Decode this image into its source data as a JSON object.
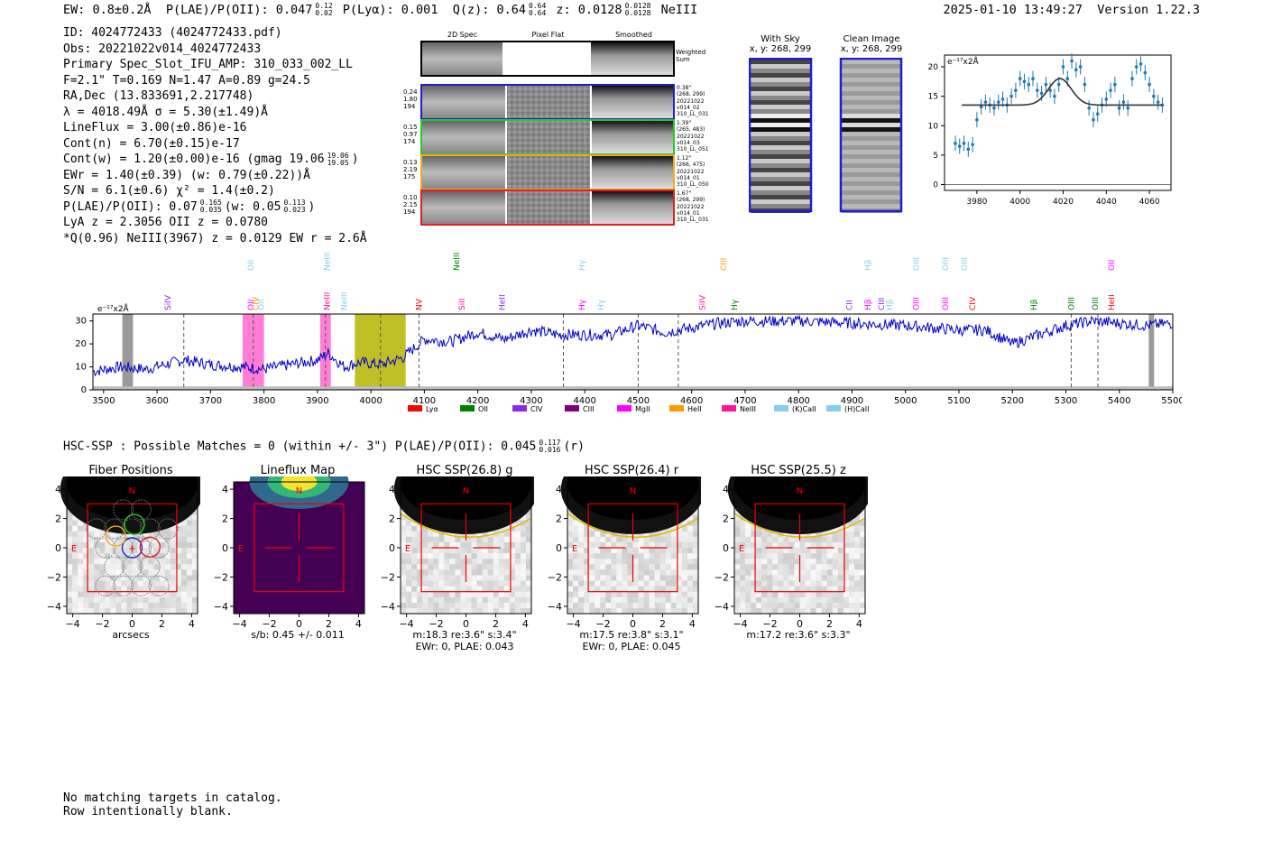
{
  "header": {
    "ew": "EW: 0.8±0.2Å",
    "plae_label": "P(LAE)/P(OII): 0.047",
    "plae_hi": "0.12",
    "plae_lo": "0.02",
    "plya": "P(Lyα): 0.001",
    "qz_label": "Q(z): 0.64",
    "qz_hi": "0.64",
    "qz_lo": "0.64",
    "z_label": "z: 0.0128",
    "z_hi": "0.0128",
    "z_lo": "0.0128",
    "line": "NeIII",
    "timestamp": "2025-01-10 13:49:27",
    "version": "Version 1.22.3"
  },
  "info": {
    "id": "ID: 4024772433 (4024772433.pdf)",
    "obs": "Obs: 20221022v014_4024772433",
    "primary": "Primary Spec_Slot_IFU_AMP: 310_033_002_LL",
    "fwhm": "F=2.1\"  T=0.169  N=1.47  A=0.89  g=24.5",
    "radec": "RA,Dec (13.833691,2.217748)",
    "lambda": "λ = 4018.49Å  σ = 5.30(±1.49)Å",
    "lineflux": "LineFlux = 3.00(±0.86)e-16",
    "contn": "Cont(n) = 6.70(±0.15)e-17",
    "contw": "Cont(w) = 1.20(±0.00)e-16 (gmag 19.06",
    "gmag_hi": "19.06",
    "gmag_lo": "19.05",
    "ewr": "EWr = 1.40(±0.39) (w: 0.79(±0.22))Å",
    "sn": "S/N = 6.1(±0.6)  χ² = 1.4(±0.2)",
    "plae": "P(LAE)/P(OII): 0.07",
    "plae_hi": "0.165",
    "plae_lo": "0.035",
    "plae_w": "(w: 0.05",
    "plae_w_hi": "0.113",
    "plae_w_lo": "0.023",
    "lya": "LyA z = 2.3056  OII z = 0.0780",
    "q": "*Q(0.96) NeIII(3967) z = 0.0129  EW r = 2.6Å"
  },
  "cutouts": {
    "col_titles": [
      "2D Spec",
      "Pixel Flat",
      "Smoothed"
    ],
    "weighted_label": "Weighted Sum",
    "rows": [
      {
        "left": [
          "0.24",
          "1.80",
          "194"
        ],
        "right": [
          "0.38\"",
          "(268, 299)",
          "20221022",
          "v014_02",
          "310_LL_031"
        ],
        "color": "#1f1fcf"
      },
      {
        "left": [
          "0.15",
          "0.97",
          "174"
        ],
        "right": [
          "1.39\"",
          "(265, 483)",
          "20221022",
          "v014_03",
          "310_LL_051"
        ],
        "color": "#22cc22"
      },
      {
        "left": [
          "0.13",
          "2.19",
          "175"
        ],
        "right": [
          "1.12\"",
          "(266, 475)",
          "20221022",
          "v014_01",
          "310_LL_050"
        ],
        "color": "#f5a623"
      },
      {
        "left": [
          "0.10",
          "2.15",
          "194"
        ],
        "right": [
          "1.67\"",
          "(268, 299)",
          "20221022",
          "v014_01",
          "310_LL_031"
        ],
        "color": "#e02020"
      }
    ],
    "with_sky_title": "With Sky",
    "with_sky_xy": "x, y: 268, 299",
    "clean_title": "Clean Image",
    "clean_xy": "x, y: 268, 299"
  },
  "zoom_plot": {
    "ylabel": "e⁻¹⁷x2Å",
    "xticks": [
      "3980",
      "4000",
      "4020",
      "4040",
      "4060"
    ],
    "yticks": [
      "0",
      "5",
      "10",
      "15",
      "20"
    ]
  },
  "chart_data": [
    {
      "type": "scatter",
      "title": "",
      "xlabel": "",
      "ylabel": "e-17 x2Å",
      "xlim": [
        3965,
        4070
      ],
      "ylim": [
        -1,
        22
      ],
      "x": [
        3970,
        3972,
        3974,
        3976,
        3978,
        3980,
        3982,
        3984,
        3986,
        3988,
        3990,
        3992,
        3994,
        3996,
        3998,
        4000,
        4002,
        4004,
        4006,
        4008,
        4010,
        4012,
        4014,
        4016,
        4018,
        4020,
        4022,
        4024,
        4026,
        4028,
        4030,
        4032,
        4034,
        4036,
        4038,
        4040,
        4042,
        4044,
        4046,
        4048,
        4050,
        4052,
        4054,
        4056,
        4058,
        4060,
        4062,
        4064,
        4066
      ],
      "values": [
        7,
        6.5,
        7,
        6,
        6.8,
        11,
        13.2,
        14,
        13.5,
        13,
        14,
        14.5,
        13.5,
        15,
        16,
        18,
        17.5,
        17,
        18,
        16,
        15.5,
        17,
        16,
        15,
        17,
        20,
        18,
        21,
        19.5,
        20,
        17,
        13,
        11,
        12,
        13.5,
        14.5,
        16,
        17,
        13,
        14,
        13,
        18,
        20,
        20.5,
        19,
        17,
        15,
        14,
        13.5
      ],
      "fit_model": "gaussian + continuum 13.5, peak ~18 at 4018.5"
    },
    {
      "type": "line",
      "title": "",
      "xlabel": "",
      "ylabel": "e-17 x2Å",
      "xlim": [
        3480,
        5500
      ],
      "ylim": [
        0,
        33
      ],
      "xticks": [
        "3500",
        "3600",
        "3700",
        "3800",
        "3900",
        "4000",
        "4100",
        "4200",
        "4300",
        "4400",
        "4500",
        "4600",
        "4700",
        "4800",
        "4900",
        "5000",
        "5100",
        "5200",
        "5300",
        "5400",
        "5500"
      ],
      "yticks": [
        "0",
        "10",
        "20",
        "30"
      ],
      "series": [
        {
          "name": "spectrum",
          "color": "#0000cc",
          "anchors_x": [
            3480,
            3530,
            3580,
            3650,
            3700,
            3760,
            3800,
            3850,
            3900,
            3920,
            3950,
            3980,
            4020,
            4060,
            4080,
            4100,
            4150,
            4200,
            4250,
            4300,
            4350,
            4400,
            4450,
            4500,
            4550,
            4600,
            4650,
            4700,
            4800,
            4900,
            5000,
            5050,
            5100,
            5150,
            5200,
            5250,
            5300,
            5350,
            5400,
            5450,
            5500
          ],
          "anchors_y": [
            8,
            10,
            9,
            13,
            11,
            10,
            9,
            11,
            13,
            16,
            10,
            12,
            11,
            14,
            18,
            22,
            21,
            25,
            22,
            26,
            24,
            24,
            24,
            28,
            25,
            27,
            29,
            30,
            30,
            29,
            28,
            27,
            26,
            26,
            20,
            24,
            28,
            30,
            29,
            28,
            29
          ]
        }
      ],
      "shaded_regions": [
        {
          "x0": 3760,
          "x1": 3800,
          "color": "#ff66cc"
        },
        {
          "x0": 3905,
          "x1": 3925,
          "color": "#ff66cc"
        },
        {
          "x0": 3970,
          "x1": 4065,
          "color": "#b5b500"
        },
        {
          "x0": 3535,
          "x1": 3555,
          "color": "#888888"
        },
        {
          "x0": 5455,
          "x1": 5465,
          "color": "#888888"
        }
      ],
      "legend": [
        "Lyα",
        "OII",
        "CIV",
        "CIII",
        "MgII",
        "HeII",
        "NeIII",
        "(K)CaII",
        "(H)CaII"
      ],
      "legend_colors": [
        "#ff0000",
        "#008000",
        "#8a2be2",
        "#800080",
        "#ff00ff",
        "#ff9900",
        "#ff1493",
        "#87ceeb",
        "#87ceeb"
      ],
      "lines_top": [
        {
          "label": "SiIV",
          "x": 3620,
          "color": "#8a2be2"
        },
        {
          "label": "OII",
          "x": 3775,
          "color": "#ff00ff"
        },
        {
          "label": "CIV",
          "x": 3785,
          "color": "#ff9900"
        },
        {
          "label": "OII",
          "x": 3795,
          "color": "#87ceeb"
        },
        {
          "label": "NeIII",
          "x": 3918,
          "color": "#ff1493"
        },
        {
          "label": "NeIII",
          "x": 3950,
          "color": "#87ceeb"
        },
        {
          "label": "NV",
          "x": 4090,
          "color": "#ff0000"
        },
        {
          "label": "SiII",
          "x": 4170,
          "color": "#ff1493"
        },
        {
          "label": "HeII",
          "x": 4245,
          "color": "#8a2be2"
        },
        {
          "label": "Hγ",
          "x": 4395,
          "color": "#ff00ff"
        },
        {
          "label": "Hγ",
          "x": 4430,
          "color": "#87ceeb"
        },
        {
          "label": "SiIV",
          "x": 4620,
          "color": "#ff1493"
        },
        {
          "label": "Hγ",
          "x": 4680,
          "color": "#008000"
        },
        {
          "label": "CII",
          "x": 4895,
          "color": "#8a2be2"
        },
        {
          "label": "Hβ",
          "x": 4930,
          "color": "#ff00ff"
        },
        {
          "label": "CIII",
          "x": 4955,
          "color": "#8a2be2"
        },
        {
          "label": "Hβ",
          "x": 4970,
          "color": "#87ceeb"
        },
        {
          "label": "OIII",
          "x": 5020,
          "color": "#ff00ff"
        },
        {
          "label": "OIII",
          "x": 5075,
          "color": "#ff00ff"
        },
        {
          "label": "CIV",
          "x": 5125,
          "color": "#ff0000"
        },
        {
          "label": "Hβ",
          "x": 5240,
          "color": "#008000"
        },
        {
          "label": "OIII",
          "x": 5310,
          "color": "#008000"
        },
        {
          "label": "OIII",
          "x": 5355,
          "color": "#008000"
        },
        {
          "label": "HeII",
          "x": 5385,
          "color": "#ff0000"
        }
      ],
      "lines_high": [
        {
          "label": "OII",
          "x": 3775,
          "color": "#87ceeb"
        },
        {
          "label": "NeIII",
          "x": 3918,
          "color": "#87ceeb"
        },
        {
          "label": "NeIII",
          "x": 4160,
          "color": "#008000"
        },
        {
          "label": "Hγ",
          "x": 4395,
          "color": "#87ceeb"
        },
        {
          "label": "CIII",
          "x": 4660,
          "color": "#ff9900"
        },
        {
          "label": "Hβ",
          "x": 4930,
          "color": "#87ceeb"
        },
        {
          "label": "OIII",
          "x": 5020,
          "color": "#87ceeb"
        },
        {
          "label": "OIII",
          "x": 5075,
          "color": "#87ceeb"
        },
        {
          "label": "OIII",
          "x": 5110,
          "color": "#87ceeb"
        },
        {
          "label": "OII",
          "x": 5385,
          "color": "#ff00ff"
        }
      ]
    }
  ],
  "hsc": {
    "summary": "HSC-SSP : Possible Matches = 0 (within +/- 3\")  P(LAE)/P(OII): 0.045",
    "summary_hi": "0.117",
    "summary_lo": "0.016",
    "summary_band": "(r)",
    "panels": [
      {
        "title": "Fiber Positions",
        "cap1": "arcsecs",
        "cap2": ""
      },
      {
        "title": "Lineflux Map",
        "cap1": "s/b: 0.45 +/- 0.011",
        "cap2": ""
      },
      {
        "title": "HSC SSP(26.8) g",
        "cap1": "m:18.3  re:3.6\"  s:3.4\"",
        "cap2": "EWr: 0, PLAE: 0.043"
      },
      {
        "title": "HSC SSP(26.4) r",
        "cap1": "m:17.5  re:3.8\"  s:3.1\"",
        "cap2": "EWr: 0, PLAE: 0.045"
      },
      {
        "title": "HSC SSP(25.5) z",
        "cap1": "m:17.2  re:3.6\"  s:3.3\"",
        "cap2": ""
      }
    ],
    "ticks": [
      "−4",
      "−2",
      "0",
      "2",
      "4"
    ],
    "north": "N",
    "east": "E"
  },
  "footer": {
    "line1": "No matching targets in catalog.",
    "line2": "Row intentionally blank."
  }
}
